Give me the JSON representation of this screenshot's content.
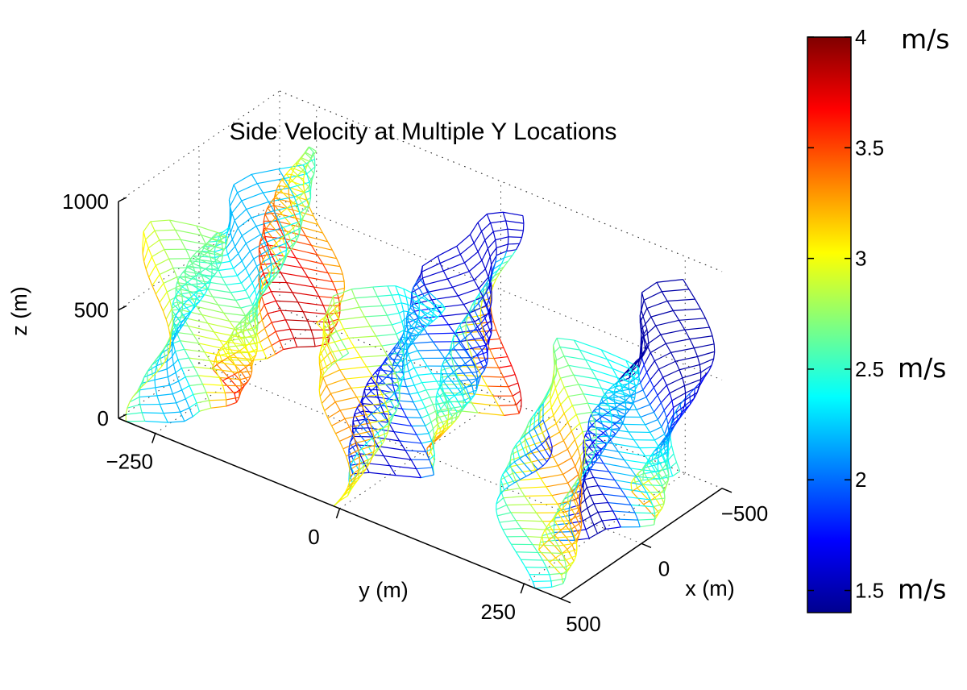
{
  "chart_data": {
    "type": "surface",
    "title": "Side Velocity at Multiple Y Locations",
    "xlabel": "x (m)",
    "ylabel": "y (m)",
    "zlabel": "z (m)",
    "x_ticks": [
      "500",
      "0",
      "−500"
    ],
    "y_ticks": [
      "−250",
      "0",
      "250"
    ],
    "z_ticks": [
      "0",
      "500",
      "1000"
    ],
    "xlim": [
      -500,
      500
    ],
    "ylim": [
      -300,
      300
    ],
    "zlim": [
      0,
      1000
    ],
    "grid": true,
    "colormap": "jet",
    "colorbar": {
      "range": [
        1.4,
        4.0
      ],
      "ticks": [
        {
          "value": 4,
          "label": "4"
        },
        {
          "value": 3.5,
          "label": "3.5"
        },
        {
          "value": 3,
          "label": "3"
        },
        {
          "value": 2.5,
          "label": "2.5"
        },
        {
          "value": 2,
          "label": "2"
        },
        {
          "value": 1.5,
          "label": "1.5"
        }
      ],
      "unit_labels": [
        {
          "at": 4,
          "text": "m/s"
        },
        {
          "at": 2.5,
          "text": "m/s"
        },
        {
          "at": 1.5,
          "text": "m/s"
        }
      ]
    },
    "series": [
      {
        "y": -250,
        "x_range": [
          -500,
          500
        ],
        "z_range": [
          0,
          900
        ],
        "speed_range": [
          2.2,
          3.9
        ]
      },
      {
        "y": 0,
        "x_range": [
          -500,
          500
        ],
        "z_range": [
          0,
          900
        ],
        "speed_range": [
          1.6,
          3.8
        ]
      },
      {
        "y": 250,
        "x_range": [
          -500,
          500
        ],
        "z_range": [
          0,
          900
        ],
        "speed_range": [
          1.5,
          3.8
        ]
      }
    ]
  }
}
